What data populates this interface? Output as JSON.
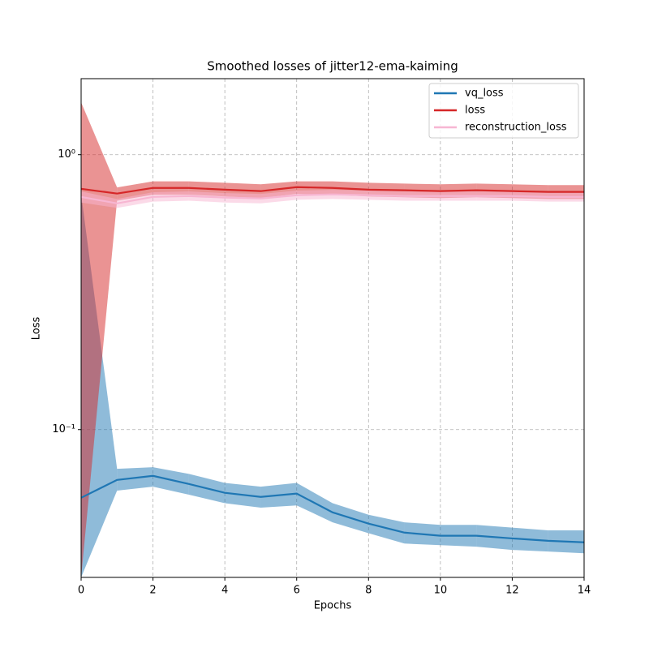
{
  "chart_data": {
    "type": "line",
    "title": "Smoothed losses of jitter12-ema-kaiming",
    "x_label": "Epochs",
    "y_label": "Loss",
    "x": [
      0,
      1,
      2,
      3,
      4,
      5,
      6,
      7,
      8,
      9,
      10,
      11,
      12,
      13,
      14
    ],
    "xlim": [
      0,
      14
    ],
    "xticks": [
      0,
      2,
      4,
      6,
      8,
      10,
      12,
      14
    ],
    "ylim": [
      0.029,
      1.89
    ],
    "log_y": true,
    "yticks": [
      {
        "value": 0.1,
        "label": "10⁻¹"
      },
      {
        "value": 1,
        "label": "10⁰"
      }
    ],
    "grid": true,
    "legend": "upper right",
    "series": [
      {
        "name": "vq_loss",
        "color": "#1f77b4",
        "values": [
          0.0565,
          0.0656,
          0.0679,
          0.0634,
          0.0589,
          0.0569,
          0.0585,
          0.05,
          0.0455,
          0.0422,
          0.0411,
          0.0411,
          0.0402,
          0.0394,
          0.0389
        ],
        "upper": [
          0.72,
          0.072,
          0.073,
          0.069,
          0.064,
          0.062,
          0.064,
          0.054,
          0.049,
          0.046,
          0.045,
          0.045,
          0.044,
          0.043,
          0.043
        ],
        "lower": [
          null,
          0.06,
          0.062,
          0.058,
          0.054,
          0.052,
          0.053,
          0.046,
          0.042,
          0.0385,
          0.038,
          0.0375,
          0.0365,
          0.036,
          0.0355
        ]
      },
      {
        "name": "loss",
        "color": "#d62728",
        "values": [
          0.751,
          0.722,
          0.757,
          0.757,
          0.746,
          0.737,
          0.762,
          0.757,
          0.746,
          0.742,
          0.737,
          0.742,
          0.737,
          0.732,
          0.732
        ],
        "upper": [
          1.55,
          0.76,
          0.8,
          0.8,
          0.79,
          0.78,
          0.8,
          0.8,
          0.79,
          0.785,
          0.78,
          0.785,
          0.78,
          0.775,
          0.775
        ],
        "lower": [
          null,
          0.68,
          0.715,
          0.715,
          0.705,
          0.695,
          0.72,
          0.715,
          0.705,
          0.7,
          0.695,
          0.7,
          0.695,
          0.69,
          0.69
        ]
      },
      {
        "name": "reconstruction_loss",
        "color": "#f7b6d2",
        "values": [
          0.702,
          0.665,
          0.702,
          0.707,
          0.698,
          0.693,
          0.712,
          0.717,
          0.712,
          0.707,
          0.707,
          0.707,
          0.707,
          0.702,
          0.702
        ],
        "upper": [
          0.735,
          0.69,
          0.73,
          0.735,
          0.725,
          0.72,
          0.74,
          0.745,
          0.74,
          0.735,
          0.735,
          0.735,
          0.735,
          0.73,
          0.73
        ],
        "lower": [
          0.67,
          0.64,
          0.675,
          0.68,
          0.67,
          0.665,
          0.685,
          0.69,
          0.685,
          0.68,
          0.68,
          0.68,
          0.68,
          0.675,
          0.675
        ]
      }
    ]
  }
}
